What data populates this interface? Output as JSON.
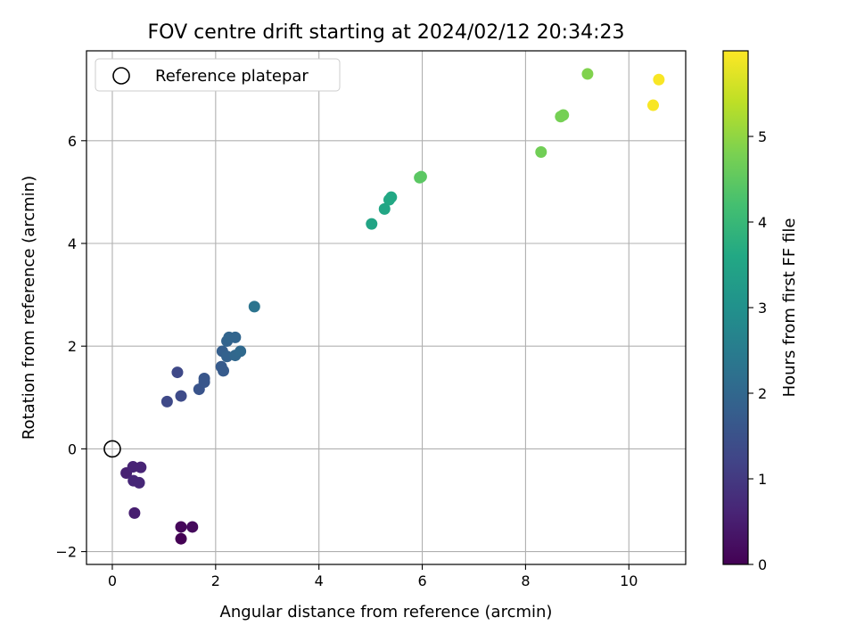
{
  "chart_data": {
    "type": "scatter",
    "title": "FOV centre drift starting at 2024/02/12 20:34:23",
    "xlabel": "Angular distance from reference (arcmin)",
    "ylabel": "Rotation from reference (arcmin)",
    "xlim": [
      -0.5,
      11.1
    ],
    "ylim": [
      -2.25,
      7.75
    ],
    "xticks": [
      0,
      2,
      4,
      6,
      8,
      10
    ],
    "yticks": [
      -2,
      0,
      2,
      4,
      6
    ],
    "grid": true,
    "legend": {
      "placement": "top-left",
      "entries": [
        "Reference platepar"
      ]
    },
    "reference_point": {
      "x": 0,
      "y": 0,
      "label": "Reference platepar"
    },
    "colorbar": {
      "label": "Hours from first FF file",
      "range": [
        0,
        6.0
      ],
      "ticks": [
        0,
        1,
        2,
        3,
        4,
        5
      ],
      "colormap": "viridis"
    },
    "points": [
      {
        "x": 1.33,
        "y": -1.75,
        "c": 0.0
      },
      {
        "x": 1.33,
        "y": -1.52,
        "c": 0.1
      },
      {
        "x": 1.55,
        "y": -1.52,
        "c": 0.15
      },
      {
        "x": 0.43,
        "y": -1.25,
        "c": 0.5
      },
      {
        "x": 0.27,
        "y": -0.47,
        "c": 0.55
      },
      {
        "x": 0.4,
        "y": -0.35,
        "c": 0.6
      },
      {
        "x": 0.55,
        "y": -0.36,
        "c": 0.6
      },
      {
        "x": 0.41,
        "y": -0.62,
        "c": 0.65
      },
      {
        "x": 0.52,
        "y": -0.66,
        "c": 0.65
      },
      {
        "x": 1.06,
        "y": 0.92,
        "c": 1.3
      },
      {
        "x": 1.33,
        "y": 1.03,
        "c": 1.35
      },
      {
        "x": 1.26,
        "y": 1.49,
        "c": 1.3
      },
      {
        "x": 1.68,
        "y": 1.16,
        "c": 1.55
      },
      {
        "x": 1.78,
        "y": 1.37,
        "c": 1.6
      },
      {
        "x": 1.78,
        "y": 1.3,
        "c": 1.6
      },
      {
        "x": 2.11,
        "y": 1.6,
        "c": 1.7
      },
      {
        "x": 2.15,
        "y": 1.52,
        "c": 1.7
      },
      {
        "x": 2.13,
        "y": 1.9,
        "c": 1.8
      },
      {
        "x": 2.22,
        "y": 1.8,
        "c": 1.85
      },
      {
        "x": 2.22,
        "y": 2.1,
        "c": 1.9
      },
      {
        "x": 2.26,
        "y": 2.17,
        "c": 1.95
      },
      {
        "x": 2.38,
        "y": 2.17,
        "c": 1.95
      },
      {
        "x": 2.38,
        "y": 1.82,
        "c": 2.0
      },
      {
        "x": 2.48,
        "y": 1.9,
        "c": 2.05
      },
      {
        "x": 2.75,
        "y": 2.77,
        "c": 2.3
      },
      {
        "x": 5.02,
        "y": 4.38,
        "c": 3.5
      },
      {
        "x": 5.27,
        "y": 4.67,
        "c": 3.55
      },
      {
        "x": 5.36,
        "y": 4.85,
        "c": 3.6
      },
      {
        "x": 5.4,
        "y": 4.9,
        "c": 3.6
      },
      {
        "x": 5.95,
        "y": 5.28,
        "c": 4.45
      },
      {
        "x": 5.98,
        "y": 5.3,
        "c": 4.45
      },
      {
        "x": 8.3,
        "y": 5.78,
        "c": 4.7
      },
      {
        "x": 8.68,
        "y": 6.47,
        "c": 4.75
      },
      {
        "x": 8.73,
        "y": 6.5,
        "c": 4.75
      },
      {
        "x": 9.2,
        "y": 7.3,
        "c": 4.85
      },
      {
        "x": 10.47,
        "y": 6.69,
        "c": 5.95
      },
      {
        "x": 10.58,
        "y": 7.19,
        "c": 5.95
      }
    ]
  }
}
